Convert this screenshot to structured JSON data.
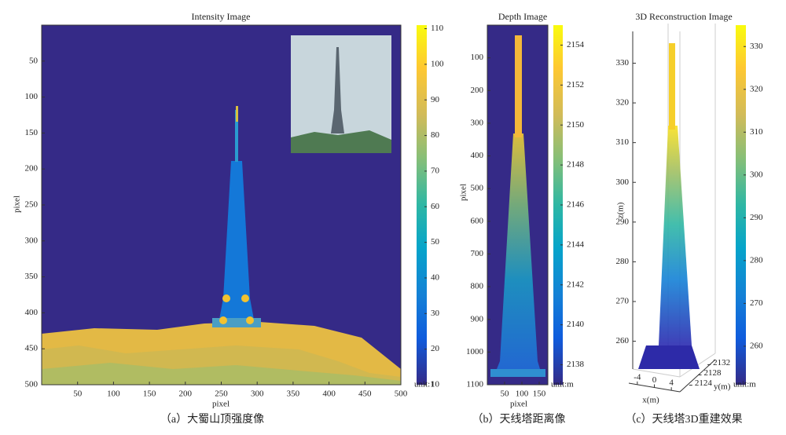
{
  "chart_data": [
    {
      "type": "image",
      "title": "Intensity Image",
      "xlabel": "pixel",
      "ylabel": "pixel",
      "xlim": [
        0,
        500
      ],
      "xticks": [
        50,
        100,
        150,
        200,
        250,
        300,
        350,
        400,
        450,
        500
      ],
      "ylim": [
        0,
        500
      ],
      "yticks": [
        50,
        100,
        150,
        200,
        250,
        300,
        350,
        400,
        450,
        500
      ],
      "clim": [
        10,
        111
      ],
      "cticks": [
        10,
        20,
        30,
        40,
        50,
        60,
        70,
        80,
        90,
        100,
        110
      ],
      "colorbar_label": "unit:1",
      "caption": "（a）大蜀山顶强度像"
    },
    {
      "type": "image",
      "title": "Depth Image",
      "xlabel": "pixel",
      "ylabel": "pixel",
      "xlim": [
        0,
        175
      ],
      "xticks": [
        50,
        100,
        150
      ],
      "ylim": [
        0,
        1100
      ],
      "yticks": [
        100,
        200,
        300,
        400,
        500,
        600,
        700,
        800,
        900,
        1000,
        1100
      ],
      "clim": [
        2137,
        2155
      ],
      "cticks": [
        2138,
        2140,
        2142,
        2144,
        2146,
        2148,
        2150,
        2152,
        2154
      ],
      "colorbar_label": "unit:m",
      "caption": "（b）天线塔距离像"
    },
    {
      "type": "scatter3d",
      "title": "3D Reconstruction Image",
      "xlabel": "x(m)",
      "ylabel": "y(m)",
      "zlabel": "z(m)",
      "xlim": [
        -6,
        6
      ],
      "xticks": [
        -4,
        0,
        4
      ],
      "ylim": [
        2122,
        2134
      ],
      "yticks": [
        2124,
        2128,
        2132
      ],
      "zlim": [
        253,
        338
      ],
      "zticks": [
        260,
        270,
        280,
        290,
        300,
        310,
        320,
        330
      ],
      "clim": [
        251,
        335
      ],
      "cticks": [
        260,
        270,
        280,
        290,
        300,
        310,
        320,
        330
      ],
      "colorbar_label": "unit:m",
      "caption": "（c）天线塔3D重建效果"
    }
  ]
}
